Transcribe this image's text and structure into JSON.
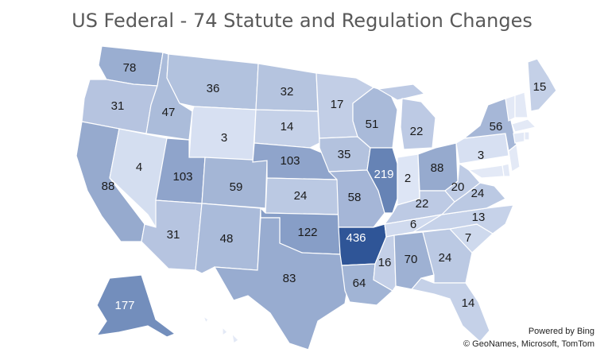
{
  "title": "US Federal - 74 Statute and Regulation Changes",
  "attribution": {
    "line1": "Powered by Bing",
    "line2": "© GeoNames, Microsoft, TomTom"
  },
  "colors": {
    "min": "#dde5f5",
    "max": "#2f5597",
    "border": "#ffffff",
    "label_dark": "#1a1a1a",
    "label_light": "#ffffff"
  },
  "scale": {
    "min": 2,
    "max": 436
  },
  "states": [
    {
      "code": "WA",
      "label": "78",
      "value": 78
    },
    {
      "code": "OR",
      "label": "31",
      "value": 31
    },
    {
      "code": "CA",
      "label": "88",
      "value": 88
    },
    {
      "code": "NV",
      "label": "4",
      "value": 4
    },
    {
      "code": "ID",
      "label": "47",
      "value": 47
    },
    {
      "code": "MT",
      "label": "36",
      "value": 36
    },
    {
      "code": "WY",
      "label": "3",
      "value": 3
    },
    {
      "code": "UT",
      "label": "103",
      "value": 103
    },
    {
      "code": "AZ",
      "label": "31",
      "value": 31
    },
    {
      "code": "CO",
      "label": "59",
      "value": 59
    },
    {
      "code": "NM",
      "label": "48",
      "value": 48
    },
    {
      "code": "ND",
      "label": "32",
      "value": 32
    },
    {
      "code": "SD",
      "label": "14",
      "value": 14
    },
    {
      "code": "NE",
      "label": "103",
      "value": 103
    },
    {
      "code": "KS",
      "label": "24",
      "value": 24
    },
    {
      "code": "OK",
      "label": "122",
      "value": 122
    },
    {
      "code": "TX",
      "label": "83",
      "value": 83
    },
    {
      "code": "MN",
      "label": "17",
      "value": 17
    },
    {
      "code": "IA",
      "label": "35",
      "value": 35
    },
    {
      "code": "MO",
      "label": "58",
      "value": 58
    },
    {
      "code": "AR",
      "label": "436",
      "value": 436
    },
    {
      "code": "LA",
      "label": "64",
      "value": 64
    },
    {
      "code": "WI",
      "label": "51",
      "value": 51
    },
    {
      "code": "IL",
      "label": "219",
      "value": 219
    },
    {
      "code": "MI",
      "label": "22",
      "value": 22
    },
    {
      "code": "IN",
      "label": "2",
      "value": 2
    },
    {
      "code": "OH",
      "label": "88",
      "value": 88
    },
    {
      "code": "KY",
      "label": "22",
      "value": 22
    },
    {
      "code": "TN",
      "label": "6",
      "value": 6
    },
    {
      "code": "MS",
      "label": "16",
      "value": 16
    },
    {
      "code": "AL",
      "label": "70",
      "value": 70
    },
    {
      "code": "GA",
      "label": "24",
      "value": 24
    },
    {
      "code": "FL",
      "label": "14",
      "value": 14
    },
    {
      "code": "SC",
      "label": "7",
      "value": 7
    },
    {
      "code": "NC",
      "label": "13",
      "value": 13
    },
    {
      "code": "VA",
      "label": "24",
      "value": 24
    },
    {
      "code": "WV",
      "label": "20",
      "value": 20
    },
    {
      "code": "PA",
      "label": "3",
      "value": 3
    },
    {
      "code": "NY",
      "label": "56",
      "value": 56
    },
    {
      "code": "ME",
      "label": "15",
      "value": 15
    },
    {
      "code": "AK",
      "label": "177",
      "value": 177
    },
    {
      "code": "VT",
      "value": 0
    },
    {
      "code": "NH",
      "value": 0
    },
    {
      "code": "MA",
      "value": 0
    },
    {
      "code": "CT",
      "value": 0
    },
    {
      "code": "RI",
      "value": 0
    },
    {
      "code": "NJ",
      "value": 0
    },
    {
      "code": "DE",
      "value": 0
    },
    {
      "code": "MD",
      "value": 0
    },
    {
      "code": "HI",
      "value": 0
    }
  ]
}
